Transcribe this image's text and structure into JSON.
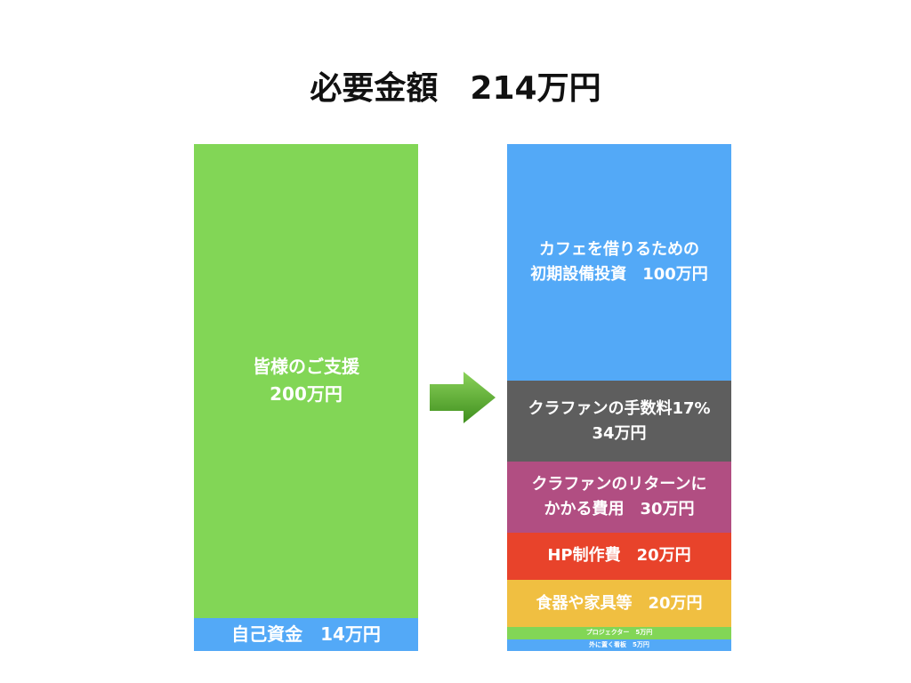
{
  "title": "必要金額　214万円",
  "unit": "万円",
  "left_column": {
    "segments": [
      {
        "label": "皆様のご支援\n200万円",
        "value": 200,
        "color": "#82D656",
        "font": 20
      },
      {
        "label": "自己資金　14万円",
        "value": 14,
        "color": "#53A9F7",
        "font": 20
      }
    ]
  },
  "arrow": {
    "icon": "right-arrow-icon",
    "color": "#5FAE2E"
  },
  "right_column": {
    "segments": [
      {
        "label": "カフェを借りるための\n初期設備投資　100万円",
        "value": 100,
        "color": "#53A9F7",
        "font": 18
      },
      {
        "label": "クラファンの手数料17%\n34万円",
        "value": 34,
        "color": "#5E5E5E",
        "font": 18
      },
      {
        "label": "クラファンのリターンに\nかかる費用　30万円",
        "value": 30,
        "color": "#B14E82",
        "font": 18
      },
      {
        "label": "HP制作費　20万円",
        "value": 20,
        "color": "#E8432B",
        "font": 18
      },
      {
        "label": "食器や家具等　20万円",
        "value": 20,
        "color": "#F0BF41",
        "font": 18
      },
      {
        "label": "プロジェクター　5万円",
        "value": 5,
        "color": "#82D656",
        "font": 7
      },
      {
        "label": "外に置く看板　5万円",
        "value": 5,
        "color": "#53A9F7",
        "font": 7
      }
    ]
  }
}
